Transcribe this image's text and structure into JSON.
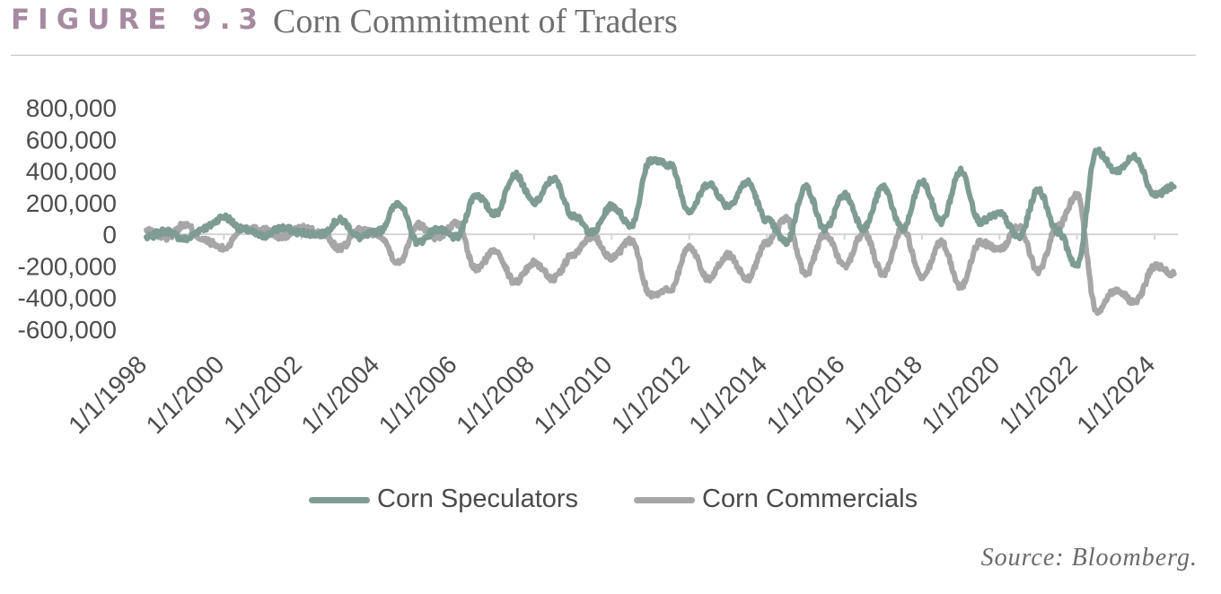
{
  "figure": {
    "label": "FIGURE 9.3",
    "title": "Corn Commitment of Traders",
    "source": "Source: Bloomberg."
  },
  "colors": {
    "label": "#a68aa0",
    "speculators": "#7f9c94",
    "commercials": "#a6a6a6",
    "zero_line": "#d4d4d4",
    "tick_text": "#4d4d4d"
  },
  "chart_data": {
    "type": "line",
    "title": "Corn Commitment of Traders",
    "xlabel": "",
    "ylabel": "",
    "ylim": [
      -600000,
      800000
    ],
    "xlim": [
      1998,
      2024.6
    ],
    "yticks": [
      800000,
      600000,
      400000,
      200000,
      0,
      -200000,
      -400000,
      -600000
    ],
    "ytick_labels": [
      "800,000",
      "600,000",
      "400,000",
      "200,000",
      "0",
      "-200,000",
      "-400,000",
      "-600,000"
    ],
    "xtick_labels": [
      "1/1/1998",
      "1/1/2000",
      "1/1/2002",
      "1/1/2004",
      "1/1/2006",
      "1/1/2008",
      "1/1/2010",
      "1/1/2012",
      "1/1/2014",
      "1/1/2016",
      "1/1/2018",
      "1/1/2020",
      "1/1/2022",
      "1/1/2024"
    ],
    "grid": false,
    "legend_position": "bottom-center",
    "x": [
      1998.0,
      1998.5,
      1999.0,
      1999.5,
      2000.0,
      2000.5,
      2001.0,
      2001.5,
      2002.0,
      2002.5,
      2003.0,
      2003.5,
      2004.0,
      2004.5,
      2005.0,
      2005.5,
      2006.0,
      2006.5,
      2007.0,
      2007.5,
      2008.0,
      2008.5,
      2009.0,
      2009.5,
      2010.0,
      2010.5,
      2011.0,
      2011.5,
      2012.0,
      2012.5,
      2013.0,
      2013.5,
      2014.0,
      2014.5,
      2015.0,
      2015.5,
      2016.0,
      2016.5,
      2017.0,
      2017.5,
      2018.0,
      2018.5,
      2019.0,
      2019.5,
      2020.0,
      2020.5,
      2021.0,
      2021.5,
      2022.0,
      2022.5,
      2023.0,
      2023.5,
      2024.0,
      2024.5
    ],
    "series": [
      {
        "name": "Corn Speculators",
        "values": [
          -20000,
          20000,
          -30000,
          40000,
          110000,
          30000,
          -10000,
          40000,
          10000,
          0,
          90000,
          -20000,
          20000,
          200000,
          -50000,
          30000,
          -20000,
          250000,
          130000,
          380000,
          200000,
          350000,
          120000,
          10000,
          180000,
          60000,
          470000,
          440000,
          150000,
          320000,
          180000,
          330000,
          90000,
          -50000,
          300000,
          30000,
          250000,
          40000,
          300000,
          30000,
          330000,
          80000,
          400000,
          80000,
          130000,
          -20000,
          280000,
          20000,
          -200000,
          530000,
          400000,
          490000,
          250000,
          300000
        ]
      },
      {
        "name": "Corn Commercials",
        "values": [
          20000,
          -20000,
          60000,
          -40000,
          -90000,
          40000,
          30000,
          -20000,
          40000,
          10000,
          -90000,
          30000,
          0,
          -180000,
          60000,
          -20000,
          70000,
          -220000,
          -100000,
          -300000,
          -180000,
          -280000,
          -130000,
          -10000,
          -150000,
          -40000,
          -380000,
          -350000,
          -80000,
          -280000,
          -130000,
          -280000,
          -50000,
          100000,
          -250000,
          0,
          -200000,
          10000,
          -250000,
          40000,
          -280000,
          -50000,
          -330000,
          -50000,
          -100000,
          50000,
          -230000,
          50000,
          250000,
          -480000,
          -350000,
          -430000,
          -200000,
          -250000
        ]
      }
    ]
  },
  "legend": {
    "items": [
      {
        "label": "Corn Speculators"
      },
      {
        "label": "Corn Commercials"
      }
    ]
  }
}
